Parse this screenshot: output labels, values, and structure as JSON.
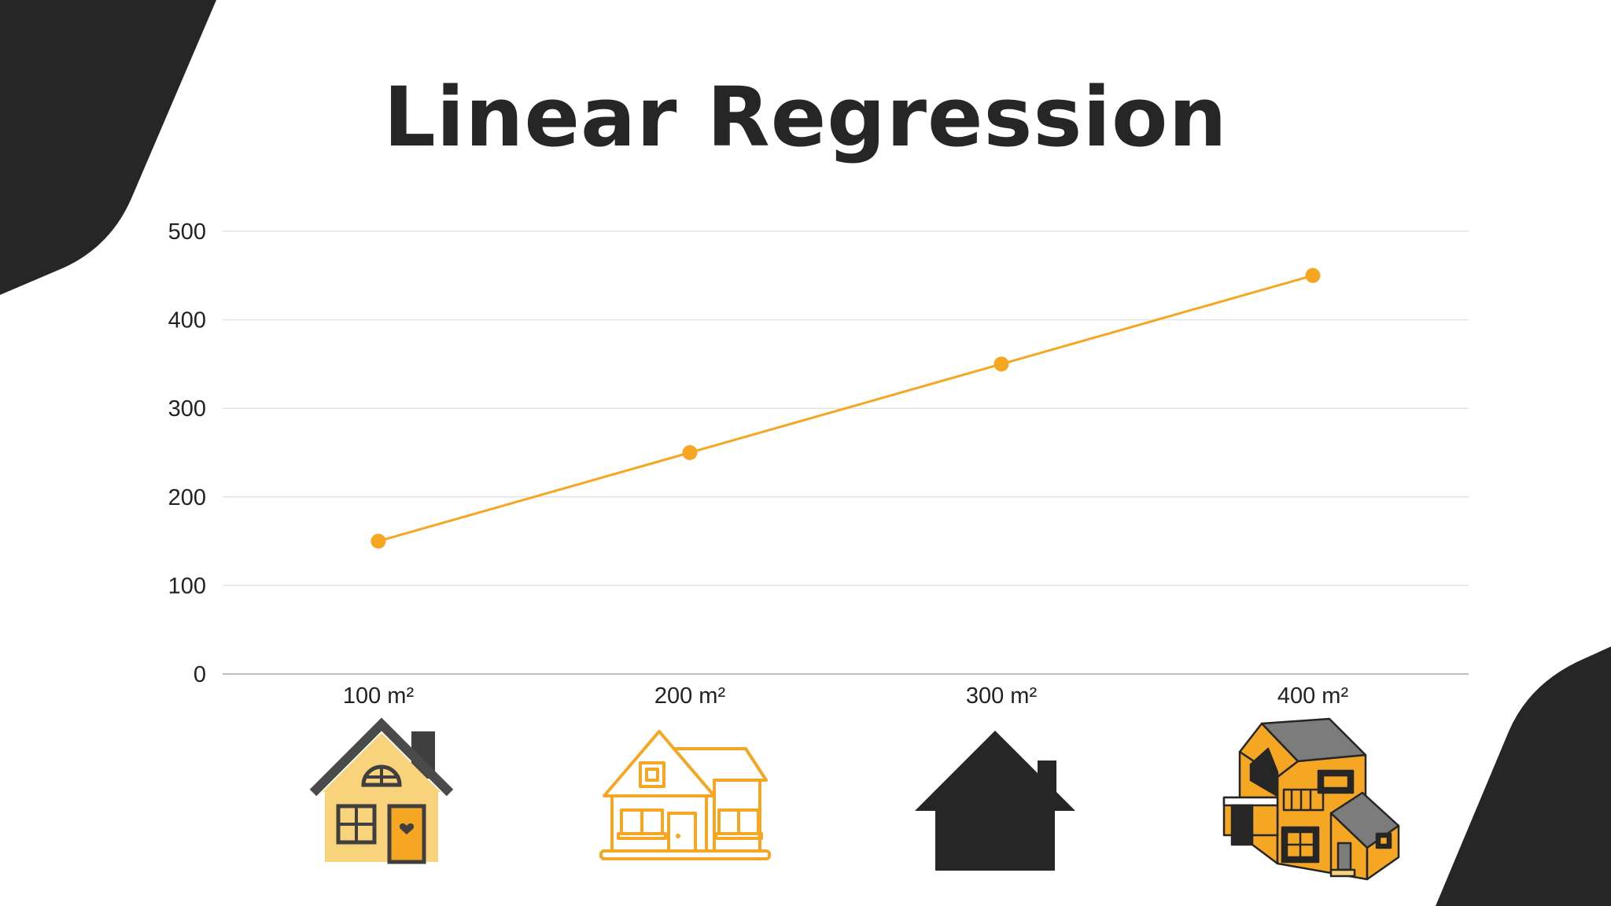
{
  "chart_data": {
    "type": "line",
    "title": "Linear Regression",
    "categories": [
      "100 m²",
      "200 m²",
      "300 m²",
      "400 m²"
    ],
    "series": [
      {
        "values": [
          150,
          250,
          350,
          450
        ]
      }
    ],
    "ylim": [
      0,
      500
    ],
    "yticks": [
      0,
      100,
      200,
      300,
      400,
      500
    ],
    "xlabel": "",
    "ylabel": "",
    "grid": true,
    "legend": "none"
  },
  "colors": {
    "accent": "#F5A623",
    "dark": "#262626",
    "house_light": "#F9D27C",
    "grid": "#E3E3E3"
  },
  "icons": [
    "house-yellow-icon",
    "house-outline-icon",
    "house-silhouette-icon",
    "house-modern-icon"
  ]
}
